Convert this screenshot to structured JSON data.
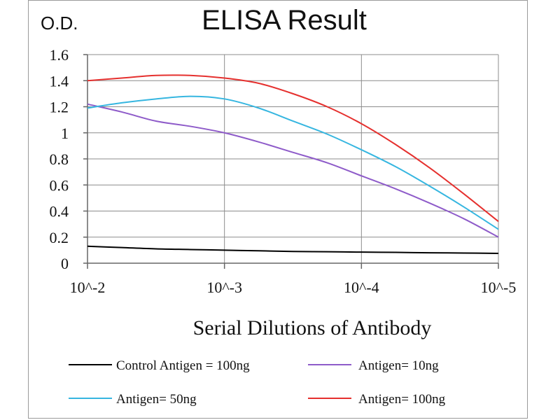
{
  "chart_data": {
    "type": "line",
    "title": "ELISA Result",
    "ylabel": "O.D.",
    "xlabel": "Serial Dilutions  of Antibody",
    "categories": [
      "10^-2",
      "10^-3",
      "10^-4",
      "10^-5"
    ],
    "x": [
      0,
      0.25,
      0.5,
      0.75,
      1,
      1.25,
      1.5,
      1.75,
      2,
      2.25,
      2.5,
      2.75,
      3
    ],
    "ylim": [
      0,
      1.6
    ],
    "yticks": [
      "0",
      "0.2",
      "0.4",
      "0.6",
      "0.8",
      "1",
      "1.2",
      "1.4",
      "1.6"
    ],
    "grid": true,
    "legend_position": "bottom",
    "series": [
      {
        "name": "Control Antigen = 100ng",
        "color": "#000000",
        "values": [
          0.13,
          0.12,
          0.11,
          0.105,
          0.1,
          0.095,
          0.09,
          0.088,
          0.085,
          0.083,
          0.08,
          0.078,
          0.075
        ]
      },
      {
        "name": "Antigen= 10ng",
        "color": "#8e5bc9",
        "values": [
          1.22,
          1.16,
          1.09,
          1.05,
          1.0,
          0.93,
          0.85,
          0.77,
          0.67,
          0.57,
          0.46,
          0.34,
          0.2
        ]
      },
      {
        "name": "Antigen= 50ng",
        "color": "#36b6e0",
        "values": [
          1.19,
          1.23,
          1.26,
          1.28,
          1.26,
          1.19,
          1.09,
          0.99,
          0.87,
          0.74,
          0.59,
          0.43,
          0.26
        ]
      },
      {
        "name": "Antigen= 100ng",
        "color": "#e5302e",
        "values": [
          1.4,
          1.42,
          1.44,
          1.44,
          1.42,
          1.38,
          1.3,
          1.2,
          1.07,
          0.91,
          0.73,
          0.53,
          0.32
        ]
      }
    ]
  }
}
